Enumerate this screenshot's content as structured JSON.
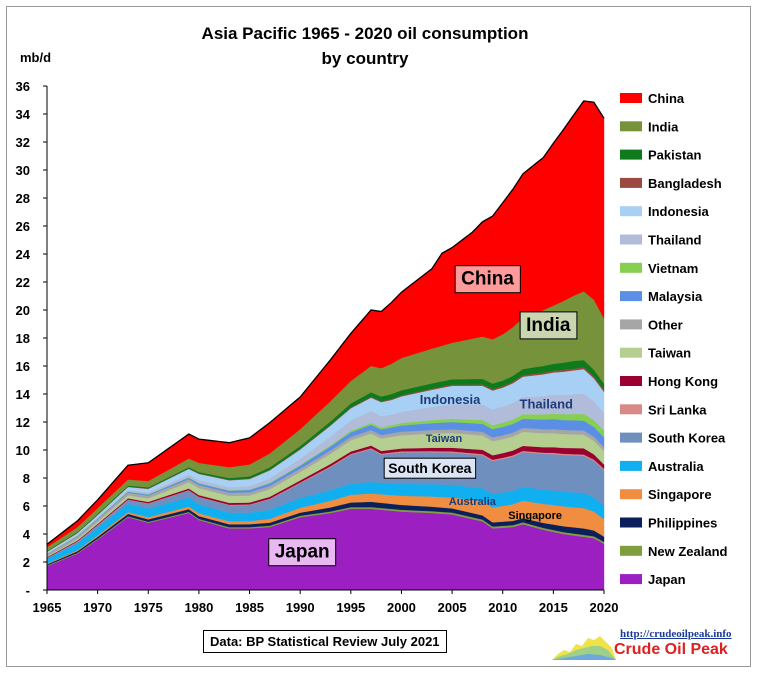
{
  "chart_data": {
    "type": "area",
    "stacked": true,
    "title": "Asia Pacific 1965 - 2020 oil consumption",
    "subtitle": "by country",
    "ylabel": "mb/d",
    "xlim": [
      1965,
      2020
    ],
    "ylim": [
      0,
      36
    ],
    "x_ticks": [
      1965,
      1970,
      1975,
      1980,
      1985,
      1990,
      1995,
      2000,
      2005,
      2010,
      2015,
      2020
    ],
    "y_ticks": [
      "-",
      "2",
      "4",
      "6",
      "8",
      "10",
      "12",
      "14",
      "16",
      "18",
      "20",
      "22",
      "24",
      "26",
      "28",
      "30",
      "32",
      "34",
      "36"
    ],
    "grid": false,
    "legend_position": "right",
    "series": [
      {
        "name": "Japan",
        "color": "#9b1fc1",
        "points": [
          [
            1965,
            1.7
          ],
          [
            1968,
            2.6
          ],
          [
            1970,
            3.6
          ],
          [
            1973,
            5.2
          ],
          [
            1975,
            4.8
          ],
          [
            1979,
            5.5
          ],
          [
            1980,
            5.0
          ],
          [
            1983,
            4.4
          ],
          [
            1985,
            4.4
          ],
          [
            1987,
            4.5
          ],
          [
            1990,
            5.2
          ],
          [
            1993,
            5.5
          ],
          [
            1995,
            5.8
          ],
          [
            1997,
            5.8
          ],
          [
            2000,
            5.6
          ],
          [
            2003,
            5.5
          ],
          [
            2005,
            5.4
          ],
          [
            2008,
            4.9
          ],
          [
            2009,
            4.4
          ],
          [
            2011,
            4.5
          ],
          [
            2012,
            4.7
          ],
          [
            2014,
            4.3
          ],
          [
            2016,
            4.0
          ],
          [
            2018,
            3.8
          ],
          [
            2019,
            3.7
          ],
          [
            2020,
            3.3
          ]
        ]
      },
      {
        "name": "New Zealand",
        "color": "#7f9f3f",
        "points": [
          [
            1965,
            0.05
          ],
          [
            1980,
            0.08
          ],
          [
            2000,
            0.13
          ],
          [
            2020,
            0.14
          ]
        ]
      },
      {
        "name": "Philippines",
        "color": "#0a1f5c",
        "points": [
          [
            1965,
            0.08
          ],
          [
            1973,
            0.17
          ],
          [
            1980,
            0.2
          ],
          [
            1990,
            0.22
          ],
          [
            1997,
            0.38
          ],
          [
            2005,
            0.3
          ],
          [
            2012,
            0.3
          ],
          [
            2016,
            0.42
          ],
          [
            2018,
            0.46
          ],
          [
            2020,
            0.37
          ]
        ]
      },
      {
        "name": "Singapore",
        "color": "#f08d40",
        "points": [
          [
            1965,
            0.05
          ],
          [
            1975,
            0.15
          ],
          [
            1980,
            0.2
          ],
          [
            1985,
            0.22
          ],
          [
            1990,
            0.35
          ],
          [
            1995,
            0.55
          ],
          [
            2000,
            0.65
          ],
          [
            2005,
            0.78
          ],
          [
            2008,
            1.0
          ],
          [
            2012,
            1.25
          ],
          [
            2015,
            1.4
          ],
          [
            2018,
            1.45
          ],
          [
            2020,
            1.25
          ]
        ]
      },
      {
        "name": "Australia",
        "color": "#10aff0",
        "points": [
          [
            1965,
            0.38
          ],
          [
            1970,
            0.55
          ],
          [
            1975,
            0.62
          ],
          [
            1980,
            0.65
          ],
          [
            1985,
            0.6
          ],
          [
            1990,
            0.7
          ],
          [
            1995,
            0.8
          ],
          [
            2000,
            0.85
          ],
          [
            2005,
            0.9
          ],
          [
            2010,
            0.95
          ],
          [
            2015,
            1.03
          ],
          [
            2018,
            1.08
          ],
          [
            2020,
            0.95
          ]
        ]
      },
      {
        "name": "South Korea",
        "color": "#6f8fbf",
        "points": [
          [
            1965,
            0.02
          ],
          [
            1970,
            0.18
          ],
          [
            1973,
            0.28
          ],
          [
            1979,
            0.5
          ],
          [
            1980,
            0.5
          ],
          [
            1985,
            0.55
          ],
          [
            1988,
            0.85
          ],
          [
            1990,
            1.05
          ],
          [
            1993,
            1.65
          ],
          [
            1995,
            2.05
          ],
          [
            1997,
            2.35
          ],
          [
            1998,
            2.0
          ],
          [
            2000,
            2.25
          ],
          [
            2005,
            2.3
          ],
          [
            2010,
            2.4
          ],
          [
            2015,
            2.6
          ],
          [
            2018,
            2.65
          ],
          [
            2020,
            2.55
          ]
        ]
      },
      {
        "name": "Sri Lanka",
        "color": "#d98888",
        "points": [
          [
            1965,
            0.02
          ],
          [
            1980,
            0.03
          ],
          [
            2000,
            0.08
          ],
          [
            2020,
            0.1
          ]
        ]
      },
      {
        "name": "Hong Kong",
        "color": "#9a0030",
        "points": [
          [
            1965,
            0.05
          ],
          [
            1980,
            0.12
          ],
          [
            1990,
            0.15
          ],
          [
            2000,
            0.2
          ],
          [
            2010,
            0.33
          ],
          [
            2015,
            0.4
          ],
          [
            2018,
            0.45
          ],
          [
            2020,
            0.3
          ]
        ]
      },
      {
        "name": "Taiwan",
        "color": "#b5cf90",
        "points": [
          [
            1965,
            0.05
          ],
          [
            1970,
            0.15
          ],
          [
            1975,
            0.25
          ],
          [
            1980,
            0.5
          ],
          [
            1985,
            0.5
          ],
          [
            1990,
            0.6
          ],
          [
            1995,
            0.8
          ],
          [
            2000,
            0.95
          ],
          [
            2005,
            1.05
          ],
          [
            2010,
            1.0
          ],
          [
            2015,
            1.0
          ],
          [
            2020,
            0.95
          ]
        ]
      },
      {
        "name": "Other",
        "color": "#a6a6a6",
        "points": [
          [
            1965,
            0.15
          ],
          [
            1980,
            0.22
          ],
          [
            2000,
            0.25
          ],
          [
            2020,
            0.3
          ]
        ]
      },
      {
        "name": "Malaysia",
        "color": "#5b8fe6",
        "points": [
          [
            1965,
            0.03
          ],
          [
            1975,
            0.08
          ],
          [
            1980,
            0.12
          ],
          [
            1990,
            0.22
          ],
          [
            2000,
            0.45
          ],
          [
            2010,
            0.6
          ],
          [
            2015,
            0.72
          ],
          [
            2020,
            0.7
          ]
        ]
      },
      {
        "name": "Vietnam",
        "color": "#86cf50",
        "points": [
          [
            1965,
            0.02
          ],
          [
            1985,
            0.03
          ],
          [
            1990,
            0.05
          ],
          [
            2000,
            0.17
          ],
          [
            2010,
            0.3
          ],
          [
            2015,
            0.38
          ],
          [
            2018,
            0.48
          ],
          [
            2020,
            0.5
          ]
        ]
      },
      {
        "name": "Thailand",
        "color": "#b0bcd9",
        "points": [
          [
            1965,
            0.03
          ],
          [
            1970,
            0.08
          ],
          [
            1975,
            0.13
          ],
          [
            1980,
            0.2
          ],
          [
            1985,
            0.25
          ],
          [
            1990,
            0.45
          ],
          [
            1995,
            0.75
          ],
          [
            1997,
            0.85
          ],
          [
            1999,
            0.75
          ],
          [
            2000,
            0.8
          ],
          [
            2005,
            1.05
          ],
          [
            2010,
            1.15
          ],
          [
            2015,
            1.35
          ],
          [
            2018,
            1.45
          ],
          [
            2020,
            1.25
          ]
        ]
      },
      {
        "name": "Indonesia",
        "color": "#a8d0f5",
        "points": [
          [
            1965,
            0.1
          ],
          [
            1970,
            0.15
          ],
          [
            1975,
            0.25
          ],
          [
            1980,
            0.45
          ],
          [
            1985,
            0.5
          ],
          [
            1990,
            0.65
          ],
          [
            1995,
            0.85
          ],
          [
            2000,
            1.1
          ],
          [
            2005,
            1.3
          ],
          [
            2010,
            1.35
          ],
          [
            2015,
            1.6
          ],
          [
            2018,
            1.75
          ],
          [
            2020,
            1.5
          ]
        ]
      },
      {
        "name": "Bangladesh",
        "color": "#9a4a40",
        "points": [
          [
            1965,
            0.02
          ],
          [
            1980,
            0.03
          ],
          [
            2000,
            0.07
          ],
          [
            2020,
            0.14
          ]
        ]
      },
      {
        "name": "Pakistan",
        "color": "#0f7a1c",
        "points": [
          [
            1965,
            0.05
          ],
          [
            1980,
            0.1
          ],
          [
            1990,
            0.2
          ],
          [
            2000,
            0.37
          ],
          [
            2010,
            0.4
          ],
          [
            2015,
            0.5
          ],
          [
            2017,
            0.55
          ],
          [
            2020,
            0.45
          ]
        ]
      },
      {
        "name": "India",
        "color": "#76933c",
        "points": [
          [
            1965,
            0.25
          ],
          [
            1970,
            0.4
          ],
          [
            1975,
            0.45
          ],
          [
            1980,
            0.65
          ],
          [
            1985,
            0.85
          ],
          [
            1990,
            1.2
          ],
          [
            1995,
            1.6
          ],
          [
            2000,
            2.3
          ],
          [
            2005,
            2.6
          ],
          [
            2010,
            3.3
          ],
          [
            2015,
            4.15
          ],
          [
            2018,
            4.9
          ],
          [
            2019,
            5.0
          ],
          [
            2020,
            4.65
          ]
        ]
      },
      {
        "name": "China",
        "color": "#ff0000",
        "points": [
          [
            1965,
            0.22
          ],
          [
            1970,
            0.6
          ],
          [
            1975,
            1.3
          ],
          [
            1979,
            1.75
          ],
          [
            1980,
            1.7
          ],
          [
            1983,
            1.75
          ],
          [
            1985,
            1.9
          ],
          [
            1987,
            2.2
          ],
          [
            1990,
            2.3
          ],
          [
            1995,
            3.4
          ],
          [
            1997,
            4.0
          ],
          [
            1998,
            4.05
          ],
          [
            2000,
            4.7
          ],
          [
            2003,
            5.7
          ],
          [
            2004,
            6.6
          ],
          [
            2005,
            6.8
          ],
          [
            2007,
            7.6
          ],
          [
            2010,
            9.4
          ],
          [
            2012,
            10.3
          ],
          [
            2014,
            10.9
          ],
          [
            2015,
            11.6
          ],
          [
            2017,
            12.9
          ],
          [
            2018,
            13.6
          ],
          [
            2019,
            14.1
          ],
          [
            2020,
            14.3
          ]
        ]
      }
    ],
    "annotations": [
      {
        "text": "China",
        "x": 2008.5,
        "y": 22.2
      },
      {
        "text": "India",
        "x": 2014.5,
        "y": 18.9
      },
      {
        "text": "Indonesia",
        "x": 2004.8,
        "y": 13.6
      },
      {
        "text": "Thailand",
        "x": 2014.3,
        "y": 13.3
      },
      {
        "text": "Taiwan",
        "x": 2004.2,
        "y": 10.8
      },
      {
        "text": "South Korea",
        "x": 2002.8,
        "y": 8.7
      },
      {
        "text": "Australia",
        "x": 2007.0,
        "y": 6.3
      },
      {
        "text": "Singapore",
        "x": 2013.2,
        "y": 5.3
      },
      {
        "text": "Japan",
        "x": 1990.2,
        "y": 2.7
      }
    ]
  },
  "source": "Data: BP Statistical Review July 2021",
  "brand": {
    "url": "http://crudeoilpeak.info",
    "name": "Crude Oil Peak"
  }
}
